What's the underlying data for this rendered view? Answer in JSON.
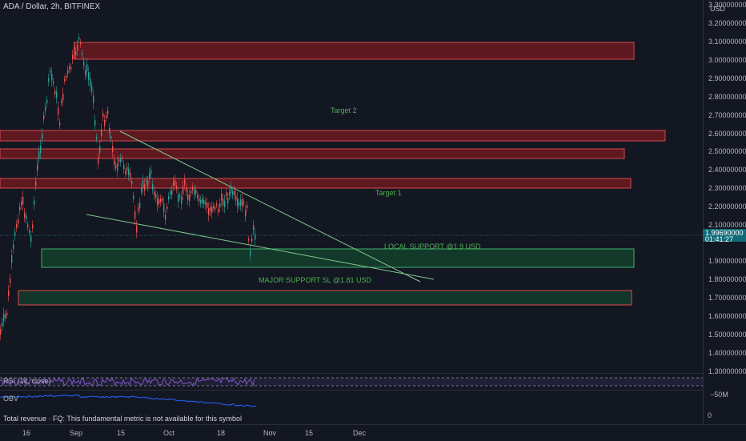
{
  "header": {
    "symbol": "ADA / Dollar, 2h, BITFINEX"
  },
  "axis": {
    "currency": "USD",
    "ticks": [
      "3.30000000",
      "3.20000000",
      "3.10000000",
      "3.00000000",
      "2.90000000",
      "2.80000000",
      "2.70000000",
      "2.60000000",
      "2.50000000",
      "2.40000000",
      "2.30000000",
      "2.20000000",
      "2.10000000",
      "1.90000000",
      "1.80000000",
      "1.70000000",
      "1.60000000",
      "1.50000000",
      "1.40000000",
      "1.30000000"
    ],
    "current_price": "1.99690000",
    "countdown": "01:41:27"
  },
  "annotations": {
    "target1": "Target 1",
    "target2": "Target 2",
    "local_support": "LOCAL SUPPORT @1.9 USD",
    "major_support": "MAJOR SUPPORT SL @1.81 USD"
  },
  "indicators": {
    "rsi_title": "RSI (14, close)",
    "obv_title": "OBV",
    "obv_tick_top": "−50M",
    "obv_tick_bottom": "0",
    "revenue_note": "Total revenue · FQ: This fundamental metric is not available for this symbol"
  },
  "x_axis": {
    "labels": [
      "16",
      "Sep",
      "15",
      "Oct",
      "18",
      "Nov",
      "15",
      "Dec"
    ]
  },
  "colors": {
    "background": "#131722",
    "up": "#26a69a",
    "down": "#ef5350",
    "target_text": "#4caf50",
    "price_badge": "#0f6b79"
  }
}
